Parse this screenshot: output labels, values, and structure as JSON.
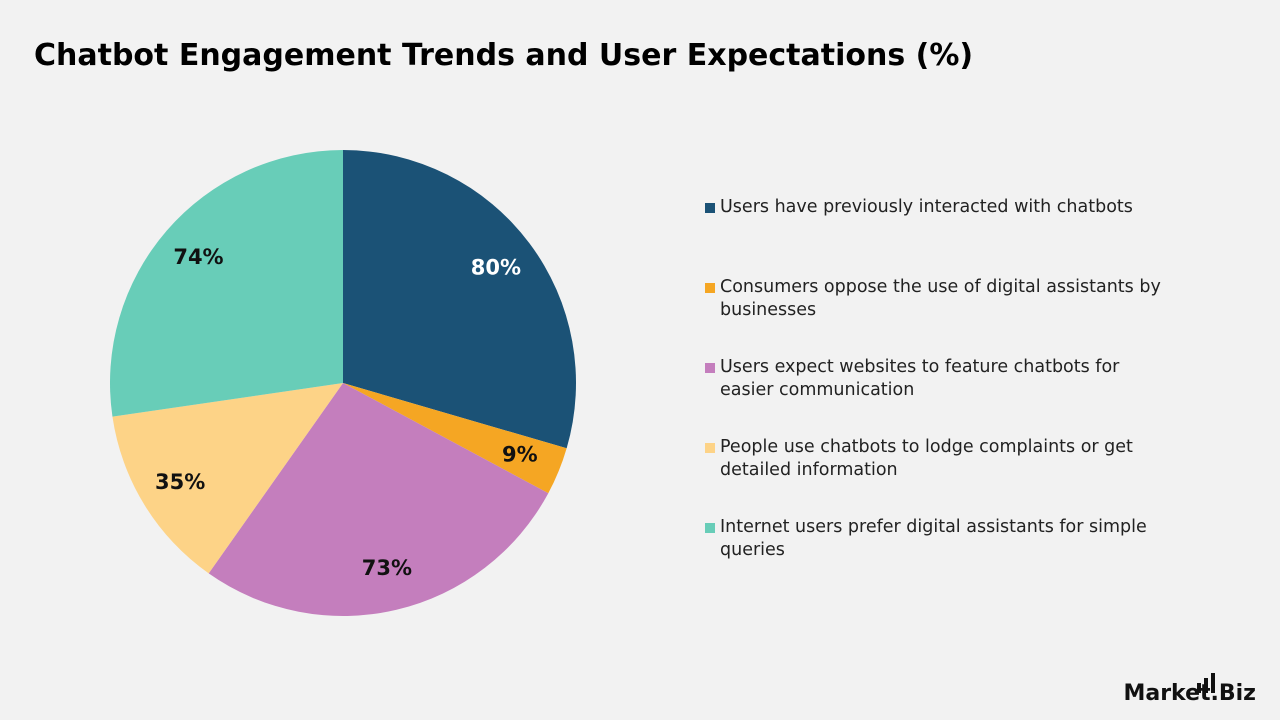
{
  "chart_data": {
    "type": "pie",
    "title": "Chatbot Engagement Trends and User Expectations (%)",
    "categories": [
      "Users have previously interacted with chatbots",
      "Consumers oppose the use of digital assistants by businesses",
      "Users expect websites to feature chatbots for easier communication",
      "People use chatbots to lodge complaints or get detailed information",
      "Internet users prefer digital assistants for simple queries"
    ],
    "values": [
      80,
      9,
      73,
      35,
      74
    ],
    "value_labels": [
      "80%",
      "9%",
      "73%",
      "35%",
      "74%"
    ],
    "colors": [
      "#1b5276",
      "#f5a623",
      "#c47ebd",
      "#fdd387",
      "#68cdb8"
    ],
    "legend": "right",
    "watermark": "Market.Biz"
  }
}
